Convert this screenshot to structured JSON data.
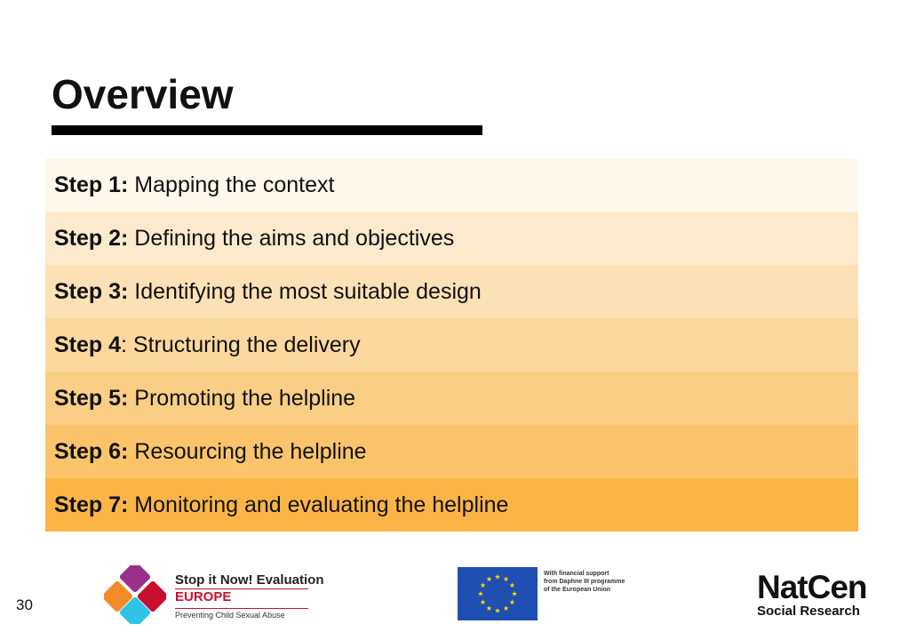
{
  "title": "Overview",
  "steps": [
    {
      "label": "Step 1:",
      "text": " Mapping the context",
      "color": "#FEF7EB"
    },
    {
      "label": "Step 2:",
      "text": " Defining the aims and objectives",
      "color": "#FDEACD"
    },
    {
      "label": "Step 3:",
      "text": " Identifying the most suitable design",
      "color": "#FCE1B6"
    },
    {
      "label": "Step 4",
      "text": ": Structuring the delivery",
      "color": "#FCD89E"
    },
    {
      "label": "Step 5:",
      "text": " Promoting the helpline",
      "color": "#FBCE85"
    },
    {
      "label": "Step 6:",
      "text": " Resourcing the helpline",
      "color": "#FBC46B"
    },
    {
      "label": "Step 7:",
      "text": " Monitoring and evaluating the helpline",
      "color": "#FBB546"
    }
  ],
  "page_number": "30",
  "logos": {
    "stop_it_now": {
      "line1": "Stop it Now! Evaluation",
      "line2": "EUROPE",
      "line3": "Preventing Child Sexual Abuse"
    },
    "eu": {
      "line1": "With financial support",
      "line2": "from Daphne III programme",
      "line3": "of the European Union"
    },
    "natcen": {
      "name": "NatCen",
      "sub": "Social Research"
    }
  }
}
